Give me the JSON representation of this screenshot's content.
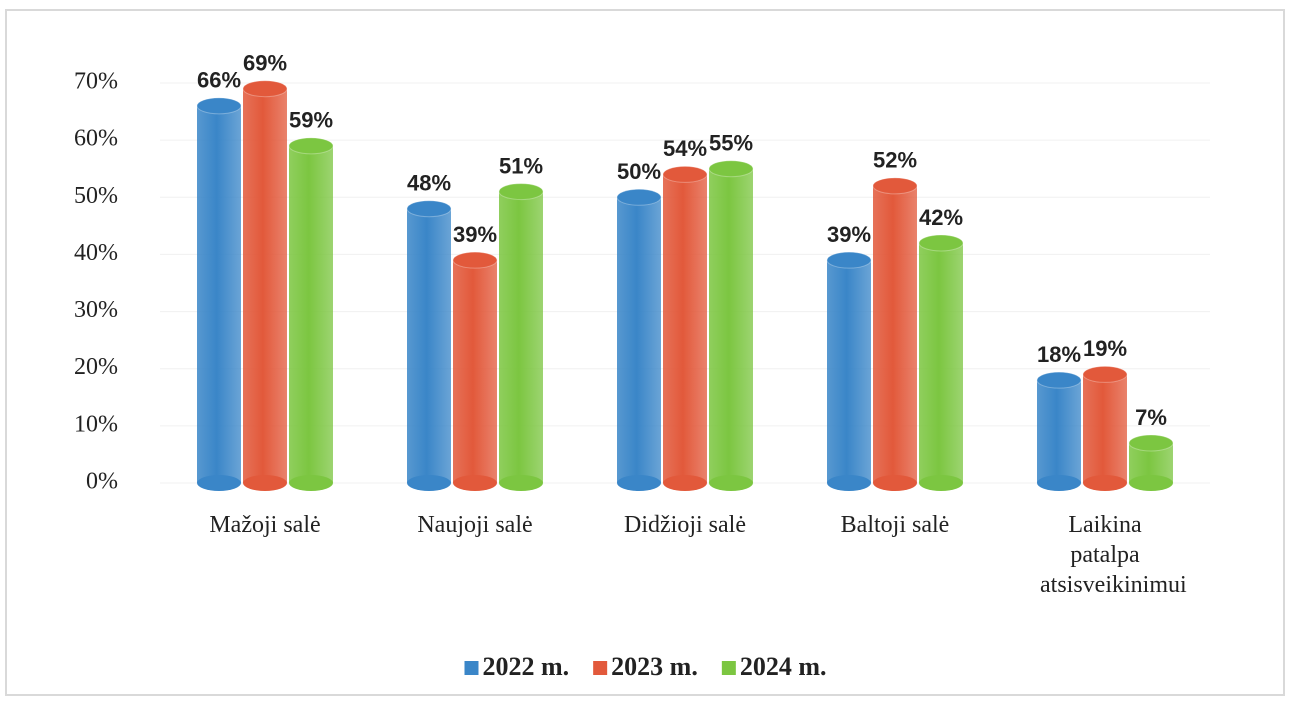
{
  "chart_data": {
    "type": "bar",
    "categories": [
      "Mažoji salė",
      "Naujoji salė",
      "Didžioji salė",
      "Baltoji salė",
      "Laikina patalpa atsisveikinimui"
    ],
    "series": [
      {
        "name": "2022 m.",
        "color": "#3a86c8",
        "values": [
          66,
          48,
          50,
          39,
          18
        ],
        "value_labels": [
          "66%",
          "48%",
          "50%",
          "39%",
          "18%"
        ]
      },
      {
        "name": "2023 m.",
        "color": "#e2593b",
        "values": [
          69,
          39,
          54,
          52,
          19
        ],
        "value_labels": [
          "69%",
          "39%",
          "54%",
          "52%",
          "19%"
        ]
      },
      {
        "name": "2024 m.",
        "color": "#7cc641",
        "values": [
          59,
          51,
          55,
          42,
          7
        ],
        "value_labels": [
          "59%",
          "51%",
          "55%",
          "42%",
          "7%"
        ]
      }
    ],
    "ylim": [
      0,
      70
    ],
    "yticks": [
      {
        "value": 0,
        "label": "0%"
      },
      {
        "value": 10,
        "label": "10%"
      },
      {
        "value": 20,
        "label": "20%"
      },
      {
        "value": 30,
        "label": "30%"
      },
      {
        "value": 40,
        "label": "40%"
      },
      {
        "value": 50,
        "label": "50%"
      },
      {
        "value": 60,
        "label": "60%"
      },
      {
        "value": 70,
        "label": "70%"
      }
    ],
    "grid": true,
    "legend": "bottom"
  }
}
